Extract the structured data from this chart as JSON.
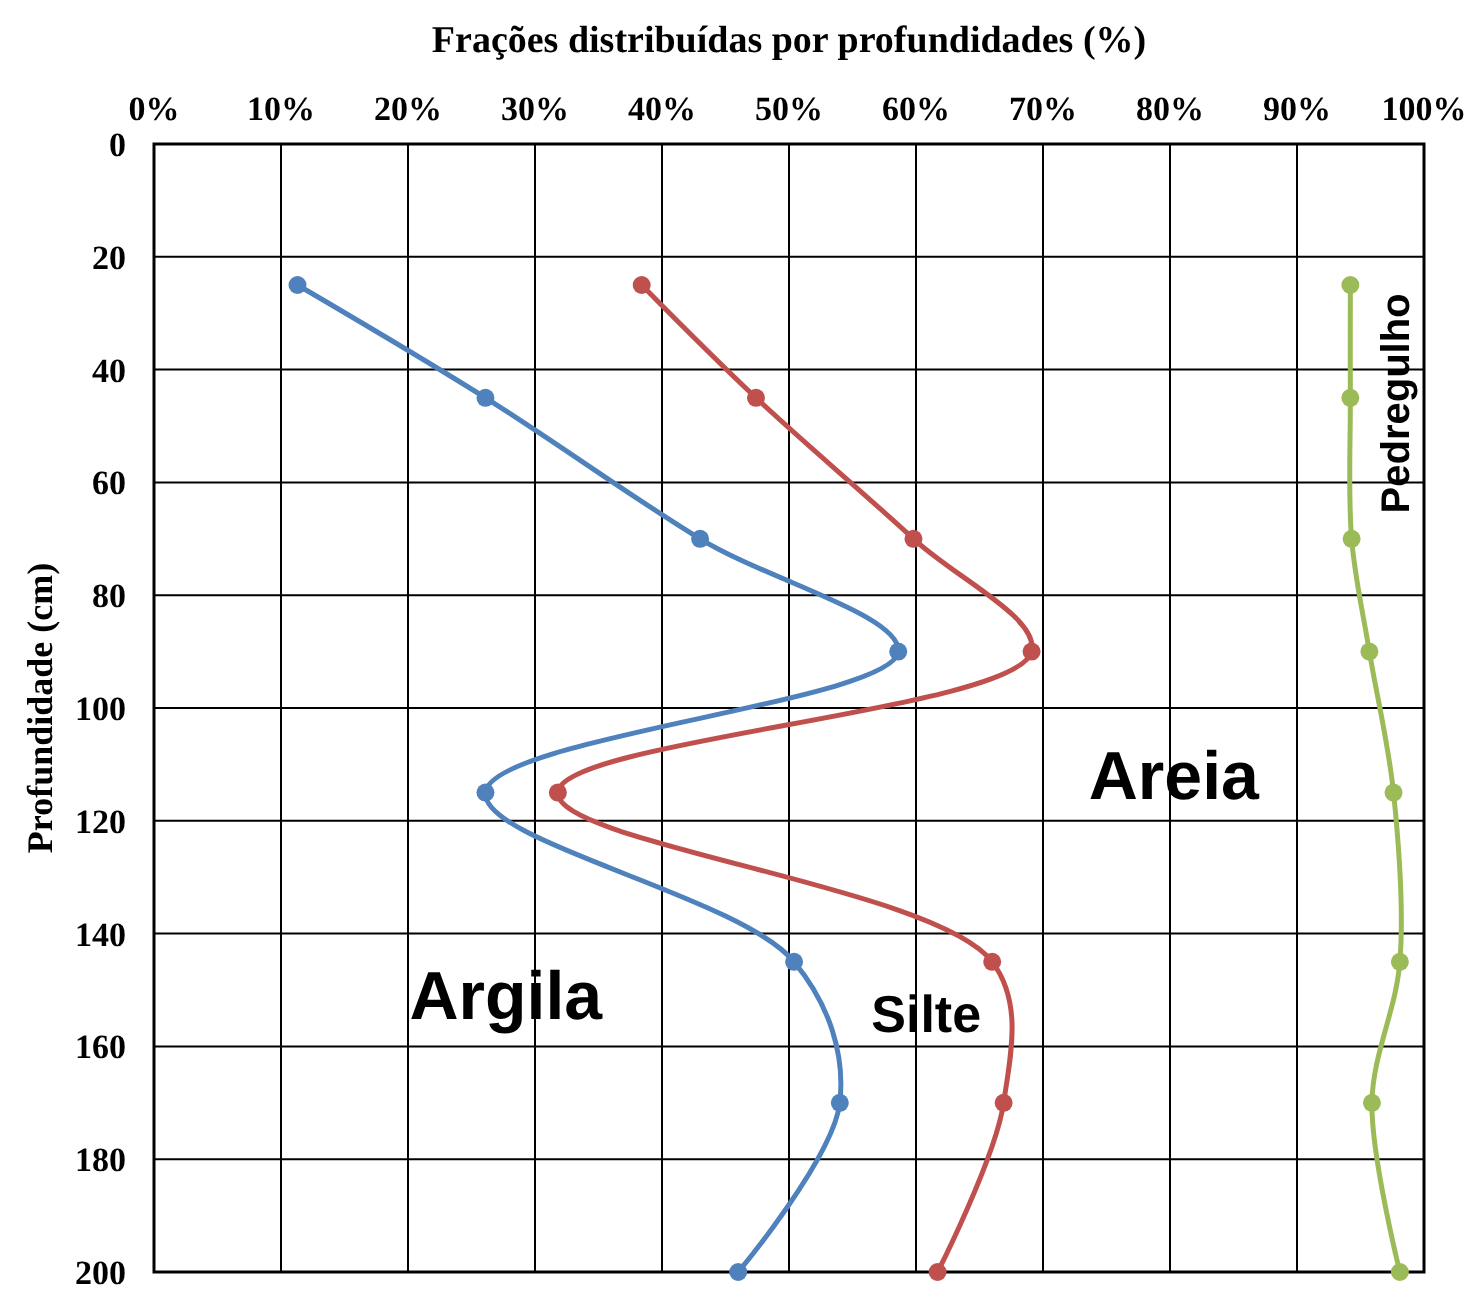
{
  "chart_data": {
    "type": "line",
    "xlabel": "Frações distribuídas por profundidades (%)",
    "ylabel": "Profundidade (cm)",
    "xlim": [
      0,
      100
    ],
    "xticks": [
      {
        "value": 0,
        "label": "0%"
      },
      {
        "value": 10,
        "label": "10%"
      },
      {
        "value": 20,
        "label": "20%"
      },
      {
        "value": 30,
        "label": "30%"
      },
      {
        "value": 40,
        "label": "40%"
      },
      {
        "value": 50,
        "label": "50%"
      },
      {
        "value": 60,
        "label": "60%"
      },
      {
        "value": 70,
        "label": "70%"
      },
      {
        "value": 80,
        "label": "80%"
      },
      {
        "value": 90,
        "label": "90%"
      },
      {
        "value": 100,
        "label": "100%"
      }
    ],
    "ylim": [
      200,
      0
    ],
    "yticks": [
      0,
      20,
      40,
      60,
      80,
      100,
      120,
      140,
      160,
      180,
      200
    ],
    "grid": true,
    "marker": "circle",
    "line_style": "solid",
    "series": [
      {
        "color": "#4f81bd",
        "x": [
          11.3,
          26.1,
          43,
          58.6,
          26.1,
          50.4,
          54,
          46
        ],
        "values": [
          25,
          45,
          70,
          90,
          115,
          145,
          170,
          200
        ]
      },
      {
        "color": "#c0504d",
        "x": [
          38.4,
          47.4,
          59.8,
          69.1,
          31.8,
          66,
          66.9,
          61.7
        ],
        "values": [
          25,
          45,
          70,
          90,
          115,
          145,
          170,
          200
        ]
      },
      {
        "color": "#9bbb59",
        "x": [
          94.2,
          94.2,
          94.3,
          95.7,
          97.6,
          98.1,
          95.9,
          98.1
        ],
        "values": [
          25,
          45,
          70,
          90,
          115,
          145,
          170,
          200
        ]
      }
    ],
    "annotations": [
      "Argila",
      "Silte",
      "Areia",
      "Pedregulho"
    ]
  }
}
